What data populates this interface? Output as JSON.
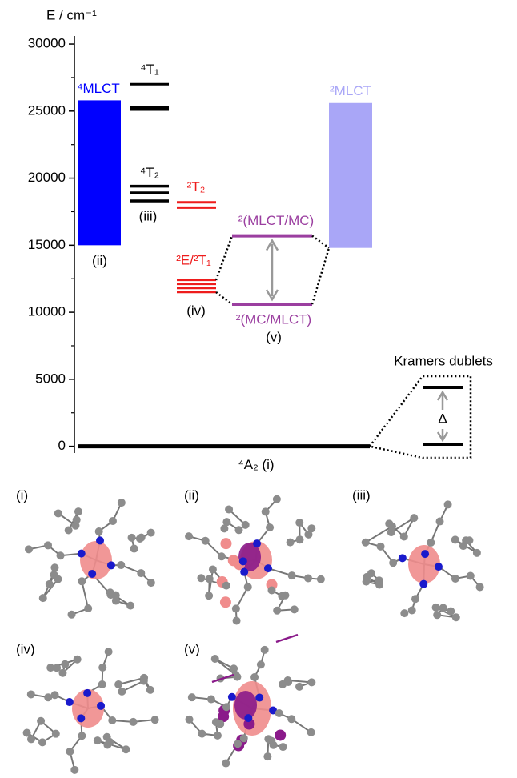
{
  "chart_data": {
    "type": "energy-levels",
    "y_label": "E / cm⁻¹",
    "ylim": [
      -500,
      30600
    ],
    "yticks": [
      0,
      5000,
      10000,
      15000,
      20000,
      25000,
      30000
    ],
    "minor_yticks": [
      2500,
      7500,
      12500,
      17500,
      22500,
      27500
    ],
    "blocks": [
      {
        "name": "⁴MLCT",
        "tag": "(ii)",
        "color": "#0000ff",
        "range": [
          15000,
          25800
        ]
      },
      {
        "name": "²MLCT",
        "color": "#a9a6f7",
        "range": [
          14800,
          25600
        ]
      }
    ],
    "levels": [
      {
        "name": "⁴T₁",
        "color": "#000000",
        "values": [
          27000,
          25200
        ]
      },
      {
        "name": "⁴T₂",
        "tag": "(iii)",
        "color": "#000000",
        "values": [
          19400,
          18900,
          18300
        ]
      },
      {
        "name": "²T₂",
        "color": "#ee1c1c",
        "values": [
          18200,
          17800
        ]
      },
      {
        "name": "²E/²T₁",
        "tag": "(iv)",
        "color": "#ee1c1c",
        "values": [
          12400,
          12100,
          11800,
          11500
        ]
      },
      {
        "name": "²(MLCT/MC)",
        "color": "#9b3fa0",
        "values": [
          15700
        ]
      },
      {
        "name": "²(MC/MLCT)",
        "tag": "(v)",
        "color": "#9b3fa0",
        "values": [
          10600
        ]
      },
      {
        "name": "⁴A₂ (i)",
        "color": "#000000",
        "values": [
          0
        ]
      }
    ],
    "inset": {
      "title": "Kramers dublets",
      "symbol": "Δ"
    }
  },
  "structures": {
    "labels": [
      "(i)",
      "(ii)",
      "(iii)",
      "(iv)",
      "(v)"
    ]
  }
}
